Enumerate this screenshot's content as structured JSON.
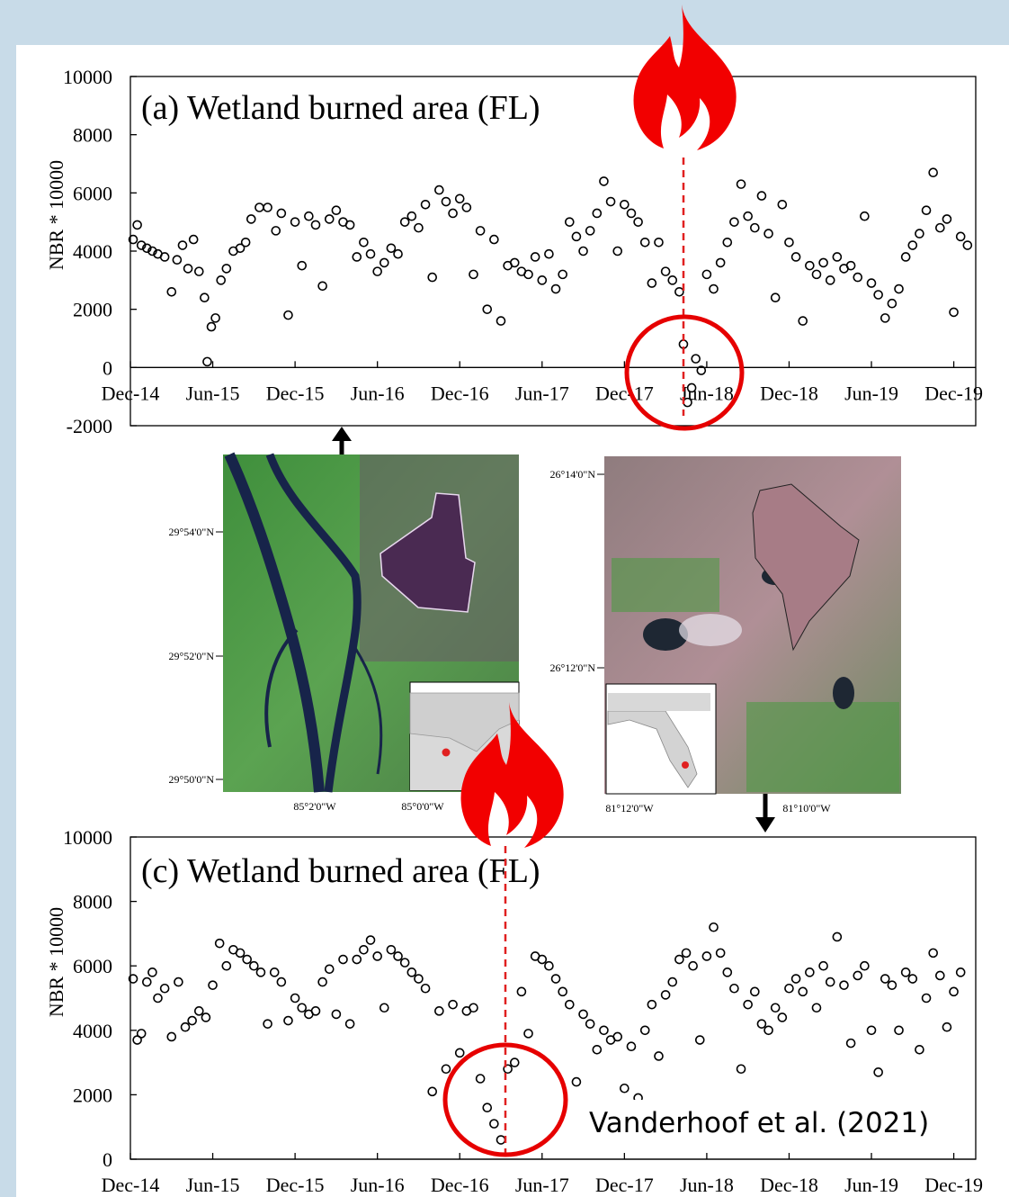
{
  "chart_data": [
    {
      "type": "scatter",
      "title": "(a) Wetland burned area (FL)",
      "y_label": "NBR * 10000",
      "color": "#000000",
      "xlim": [
        0,
        61.6
      ],
      "ylim": [
        -2000,
        10000
      ],
      "xticks": [
        {
          "value": 0,
          "label": "Dec-14"
        },
        {
          "value": 6,
          "label": "Jun-15"
        },
        {
          "value": 12,
          "label": "Dec-15"
        },
        {
          "value": 18,
          "label": "Jun-16"
        },
        {
          "value": 24,
          "label": "Dec-16"
        },
        {
          "value": 30,
          "label": "Jun-17"
        },
        {
          "value": 36,
          "label": "Dec-17"
        },
        {
          "value": 42,
          "label": "Jun-18"
        },
        {
          "value": 48,
          "label": "Dec-18"
        },
        {
          "value": 54,
          "label": "Jun-19"
        },
        {
          "value": 60,
          "label": "Dec-19"
        }
      ],
      "yticks": [
        -2000,
        0,
        2000,
        4000,
        6000,
        8000,
        10000
      ],
      "x": [
        0.2,
        0.5,
        0.8,
        1.2,
        1.6,
        2,
        2.5,
        3,
        3.4,
        3.8,
        4.2,
        4.6,
        5,
        5.4,
        5.6,
        5.9,
        6.2,
        6.6,
        7,
        7.5,
        8,
        8.4,
        8.8,
        9.4,
        10,
        10.6,
        11,
        11.5,
        12,
        12.5,
        13,
        13.5,
        14,
        14.5,
        15,
        15.5,
        16,
        16.5,
        17,
        17.5,
        18,
        18.5,
        19,
        19.5,
        20,
        20.5,
        21,
        21.5,
        22,
        22.5,
        23,
        23.5,
        24,
        24.5,
        25,
        25.5,
        26,
        26.5,
        27,
        27.5,
        28,
        28.5,
        29,
        29.5,
        30,
        30.5,
        31,
        31.5,
        32,
        32.5,
        33,
        33.5,
        34,
        34.5,
        35,
        35.5,
        36,
        36.5,
        37,
        37.5,
        38,
        38.5,
        39,
        39.5,
        40,
        40.3,
        40.6,
        40.9,
        41.2,
        41.6,
        42,
        42.5,
        43,
        43.5,
        44,
        44.5,
        45,
        45.5,
        46,
        46.5,
        47,
        47.5,
        48,
        48.5,
        49,
        49.5,
        50,
        50.5,
        51,
        51.5,
        52,
        52.5,
        53,
        53.5,
        54,
        54.5,
        55,
        55.5,
        56,
        56.5,
        57,
        57.5,
        58,
        58.5,
        59,
        59.5,
        60,
        60.5,
        61
      ],
      "values": [
        4400,
        4900,
        4200,
        4100,
        4000,
        3900,
        3800,
        2600,
        3700,
        4200,
        3400,
        4400,
        3300,
        2400,
        200,
        1400,
        1700,
        3000,
        3400,
        4000,
        4100,
        4300,
        5100,
        5500,
        5500,
        4700,
        5300,
        1800,
        5000,
        3500,
        5200,
        4900,
        2800,
        5100,
        5400,
        5000,
        4900,
        3800,
        4300,
        3900,
        3300,
        3600,
        4100,
        3900,
        5000,
        5200,
        4800,
        5600,
        3100,
        6100,
        5700,
        5300,
        5800,
        5500,
        3200,
        4700,
        2000,
        4400,
        1600,
        3500,
        3600,
        3300,
        3200,
        3800,
        3000,
        3900,
        2700,
        3200,
        5000,
        4500,
        4000,
        4700,
        5300,
        6400,
        5700,
        4000,
        5600,
        5300,
        5000,
        4300,
        2900,
        4300,
        3300,
        3000,
        2600,
        800,
        -1200,
        -700,
        300,
        -100,
        3200,
        2700,
        3600,
        4300,
        5000,
        6300,
        5200,
        4800,
        5900,
        4600,
        2400,
        5600,
        4300,
        3800,
        1600,
        3500,
        3200,
        3600,
        3000,
        3800,
        3400,
        3500,
        3100,
        5200,
        2900,
        2500,
        1700,
        2200,
        2700,
        3800,
        4200,
        4600,
        5400,
        6700,
        4800,
        5100,
        1900,
        4500,
        4200
      ]
    },
    {
      "type": "scatter",
      "title": "(c) Wetland burned area (FL)",
      "y_label": "NBR * 10000",
      "color": "#000000",
      "xlim": [
        0,
        61.6
      ],
      "ylim": [
        0,
        10000
      ],
      "xticks": [
        {
          "value": 0,
          "label": "Dec-14"
        },
        {
          "value": 6,
          "label": "Jun-15"
        },
        {
          "value": 12,
          "label": "Dec-15"
        },
        {
          "value": 18,
          "label": "Jun-16"
        },
        {
          "value": 24,
          "label": "Dec-16"
        },
        {
          "value": 30,
          "label": "Jun-17"
        },
        {
          "value": 36,
          "label": "Dec-17"
        },
        {
          "value": 42,
          "label": "Jun-18"
        },
        {
          "value": 48,
          "label": "Dec-18"
        },
        {
          "value": 54,
          "label": "Jun-19"
        },
        {
          "value": 60,
          "label": "Dec-19"
        }
      ],
      "yticks": [
        0,
        2000,
        4000,
        6000,
        8000,
        10000
      ],
      "x": [
        0.2,
        0.5,
        0.8,
        1.2,
        1.6,
        2,
        2.5,
        3,
        3.5,
        4,
        4.5,
        5,
        5.5,
        6,
        6.5,
        7,
        7.5,
        8,
        8.5,
        9,
        9.5,
        10,
        10.5,
        11,
        11.5,
        12,
        12.5,
        13,
        13.5,
        14,
        14.5,
        15,
        15.5,
        16,
        16.5,
        17,
        17.5,
        18,
        18.5,
        19,
        19.5,
        20,
        20.5,
        21,
        21.5,
        22,
        22.5,
        23,
        23.5,
        24,
        24.5,
        25,
        25.5,
        26,
        26.5,
        27,
        27.5,
        28,
        28.5,
        29,
        29.5,
        30,
        30.5,
        31,
        31.5,
        32,
        32.5,
        33,
        33.5,
        34,
        34.5,
        35,
        35.5,
        36,
        36.5,
        37,
        37.5,
        38,
        38.5,
        39,
        39.5,
        40,
        40.5,
        41,
        41.5,
        42,
        42.5,
        43,
        43.5,
        44,
        44.5,
        45,
        45.5,
        46,
        46.5,
        47,
        47.5,
        48,
        48.5,
        49,
        49.5,
        50,
        50.5,
        51,
        51.5,
        52,
        52.5,
        53,
        53.5,
        54,
        54.5,
        55,
        55.5,
        56,
        56.5,
        57,
        57.5,
        58,
        58.5,
        59,
        59.5,
        60,
        60.5
      ],
      "values": [
        5600,
        3700,
        3900,
        5500,
        5800,
        5000,
        5300,
        3800,
        5500,
        4100,
        4300,
        4600,
        4400,
        5400,
        6700,
        6000,
        6500,
        6400,
        6200,
        6000,
        5800,
        4200,
        5800,
        5500,
        4300,
        5000,
        4700,
        4500,
        4600,
        5500,
        5900,
        4500,
        6200,
        4200,
        6200,
        6500,
        6800,
        6300,
        4700,
        6500,
        6300,
        6100,
        5800,
        5600,
        5300,
        2100,
        4600,
        2800,
        4800,
        3300,
        4600,
        4700,
        2500,
        1600,
        1100,
        600,
        2800,
        3000,
        5200,
        3900,
        6300,
        6200,
        6000,
        5600,
        5200,
        4800,
        2400,
        4500,
        4200,
        3400,
        4000,
        3700,
        3800,
        2200,
        3500,
        1900,
        4000,
        4800,
        3200,
        5100,
        5500,
        6200,
        6400,
        6000,
        3700,
        6300,
        7200,
        6400,
        5800,
        5300,
        2800,
        4800,
        5200,
        4200,
        4000,
        4700,
        4400,
        5300,
        5600,
        5200,
        5800,
        4700,
        6000,
        5500,
        6900,
        5400,
        3600,
        5700,
        6000,
        4000,
        2700,
        5600,
        5400,
        4000,
        5800,
        5600,
        3400,
        5000,
        6400,
        5700,
        4100,
        5200,
        5800
      ]
    }
  ],
  "maps": [
    {
      "lat_labels": [
        "29°54'0\"N",
        "29°52'0\"N",
        "29°50'0\"N"
      ],
      "lon_labels": [
        "85°2'0\"W",
        "85°0'0\"W"
      ]
    },
    {
      "lat_labels": [
        "26°14'0\"N",
        "26°12'0\"N"
      ],
      "lon_labels": [
        "81°12'0\"W",
        "81°10'0\"W"
      ]
    }
  ],
  "citation": "Vanderhoof et al. (2021)"
}
